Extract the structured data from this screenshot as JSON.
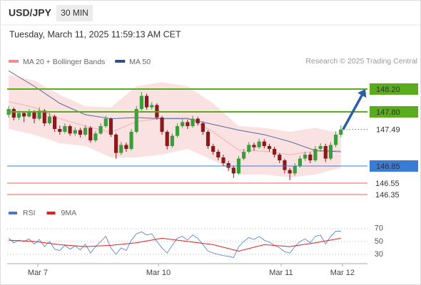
{
  "header": {
    "symbol": "USD/JPY",
    "timeframe": "30 MIN",
    "datetime": "Tuesday, March 11, 2025 11:59:13 AM CET",
    "credit": "Research © 2025 Trading Central"
  },
  "chart_data": [
    {
      "type": "candlestick",
      "legend": [
        {
          "name": "MA 20 + Bollinger Bands",
          "color": "#f08c8c"
        },
        {
          "name": "MA 50",
          "color": "#2f4f86"
        }
      ],
      "up_color": "#3c9d3c",
      "down_color": "#8b1a1a",
      "x": [
        0,
        1,
        2,
        3,
        4,
        5,
        6,
        7,
        8,
        9,
        10,
        11,
        12,
        13,
        14,
        15,
        16,
        17,
        18,
        19,
        20,
        21,
        22,
        23,
        24,
        25,
        26,
        27,
        28,
        29,
        30,
        31,
        32,
        33,
        34,
        35,
        36,
        37,
        38,
        39,
        40,
        41,
        42,
        43,
        44,
        45,
        46,
        47,
        48,
        49,
        50,
        51,
        52,
        53,
        54,
        55,
        56,
        57,
        58,
        59,
        60,
        61,
        62,
        63,
        64,
        65
      ],
      "ohlc": [
        [
          147.75,
          147.9,
          147.7,
          147.85
        ],
        [
          147.85,
          147.88,
          147.65,
          147.7
        ],
        [
          147.7,
          147.82,
          147.66,
          147.78
        ],
        [
          147.78,
          147.8,
          147.62,
          147.72
        ],
        [
          147.72,
          147.85,
          147.7,
          147.8
        ],
        [
          147.8,
          147.83,
          147.6,
          147.68
        ],
        [
          147.68,
          147.88,
          147.65,
          147.82
        ],
        [
          147.82,
          147.85,
          147.55,
          147.6
        ],
        [
          147.6,
          147.78,
          147.57,
          147.72
        ],
        [
          147.72,
          147.75,
          147.45,
          147.5
        ],
        [
          147.5,
          147.56,
          147.4,
          147.45
        ],
        [
          147.45,
          147.6,
          147.42,
          147.55
        ],
        [
          147.55,
          147.58,
          147.38,
          147.42
        ],
        [
          147.42,
          147.53,
          147.38,
          147.48
        ],
        [
          147.48,
          147.52,
          147.35,
          147.4
        ],
        [
          147.4,
          147.57,
          147.37,
          147.52
        ],
        [
          147.52,
          147.55,
          147.26,
          147.3
        ],
        [
          147.3,
          147.46,
          147.27,
          147.42
        ],
        [
          147.42,
          147.6,
          147.4,
          147.55
        ],
        [
          147.55,
          147.73,
          147.52,
          147.68
        ],
        [
          147.68,
          147.7,
          147.36,
          147.4
        ],
        [
          147.4,
          147.43,
          146.98,
          147.08
        ],
        [
          147.08,
          147.27,
          147.04,
          147.22
        ],
        [
          147.22,
          147.26,
          147.1,
          147.15
        ],
        [
          147.15,
          147.5,
          147.12,
          147.45
        ],
        [
          147.45,
          147.9,
          147.42,
          147.85
        ],
        [
          147.85,
          148.15,
          147.82,
          148.08
        ],
        [
          148.08,
          148.12,
          147.84,
          147.88
        ],
        [
          147.88,
          147.97,
          147.84,
          147.92
        ],
        [
          147.92,
          147.95,
          147.66,
          147.7
        ],
        [
          147.7,
          147.73,
          147.4,
          147.45
        ],
        [
          147.45,
          147.48,
          147.14,
          147.2
        ],
        [
          147.2,
          147.42,
          147.17,
          147.38
        ],
        [
          147.38,
          147.6,
          147.35,
          147.55
        ],
        [
          147.55,
          147.68,
          147.52,
          147.62
        ],
        [
          147.62,
          147.66,
          147.5,
          147.55
        ],
        [
          147.55,
          147.73,
          147.52,
          147.68
        ],
        [
          147.68,
          147.71,
          147.56,
          147.6
        ],
        [
          147.6,
          147.63,
          147.4,
          147.45
        ],
        [
          147.45,
          147.48,
          147.15,
          147.2
        ],
        [
          147.2,
          147.24,
          147.05,
          147.1
        ],
        [
          147.1,
          147.14,
          146.95,
          147.0
        ],
        [
          147.0,
          147.05,
          146.85,
          146.9
        ],
        [
          146.9,
          146.94,
          146.76,
          146.82
        ],
        [
          146.82,
          146.86,
          146.64,
          146.72
        ],
        [
          146.72,
          147.03,
          146.7,
          146.98
        ],
        [
          146.98,
          147.15,
          146.95,
          147.1
        ],
        [
          147.1,
          147.27,
          147.07,
          147.22
        ],
        [
          147.22,
          147.26,
          147.12,
          147.18
        ],
        [
          147.18,
          147.33,
          147.15,
          147.28
        ],
        [
          147.28,
          147.32,
          147.16,
          147.2
        ],
        [
          147.2,
          147.24,
          147.1,
          147.15
        ],
        [
          147.15,
          147.19,
          147.0,
          147.05
        ],
        [
          147.05,
          147.08,
          146.9,
          146.95
        ],
        [
          146.95,
          146.98,
          146.72,
          146.78
        ],
        [
          146.78,
          146.82,
          146.6,
          146.72
        ],
        [
          146.72,
          146.9,
          146.68,
          146.85
        ],
        [
          146.85,
          147.03,
          146.82,
          146.98
        ],
        [
          146.98,
          147.1,
          146.94,
          147.05
        ],
        [
          147.05,
          147.09,
          146.9,
          146.95
        ],
        [
          146.95,
          147.2,
          146.92,
          147.15
        ],
        [
          147.15,
          147.25,
          147.1,
          147.2
        ],
        [
          147.2,
          147.24,
          146.92,
          146.98
        ],
        [
          146.98,
          147.27,
          146.95,
          147.22
        ],
        [
          147.22,
          147.46,
          147.18,
          147.4
        ],
        [
          147.4,
          147.56,
          147.36,
          147.49
        ]
      ],
      "bands": {
        "x": [
          0,
          5,
          10,
          15,
          20,
          25,
          30,
          35,
          40,
          45,
          50,
          55,
          60,
          65
        ],
        "upper": [
          148.45,
          148.35,
          148.1,
          147.9,
          147.88,
          148.25,
          148.32,
          148.25,
          147.95,
          147.55,
          147.52,
          147.45,
          147.52,
          147.42
        ],
        "lower": [
          147.5,
          147.4,
          147.25,
          147.2,
          147.0,
          147.0,
          147.05,
          147.15,
          146.95,
          146.7,
          146.7,
          146.65,
          146.7,
          146.82
        ],
        "ma20": [
          147.98,
          147.88,
          147.68,
          147.55,
          147.44,
          147.63,
          147.69,
          147.7,
          147.45,
          147.13,
          147.11,
          147.05,
          147.11,
          147.12
        ],
        "ma50": [
          148.52,
          148.25,
          147.95,
          147.75,
          147.68,
          147.7,
          147.68,
          147.68,
          147.58,
          147.48,
          147.4,
          147.28,
          147.12,
          147.1
        ]
      },
      "levels": [
        {
          "value": 148.2,
          "label": "148.20",
          "color": "#5aab1e",
          "style": "box"
        },
        {
          "value": 147.8,
          "label": "147.80",
          "color": "#5aab1e",
          "style": "box"
        },
        {
          "value": 147.49,
          "label": "147.49",
          "color": "#333333",
          "style": "current"
        },
        {
          "value": 146.85,
          "label": "146.85",
          "color": "#3a7bd5",
          "style": "box"
        },
        {
          "value": 146.55,
          "label": "146.55",
          "color": "#e06060",
          "style": "text"
        },
        {
          "value": 146.35,
          "label": "146.35",
          "color": "#e06060",
          "style": "text"
        }
      ],
      "xlim": [
        -0.3,
        70.2
      ],
      "ylim": [
        146.2,
        148.575
      ]
    },
    {
      "type": "line",
      "x": [
        0,
        1,
        2,
        3,
        4,
        5,
        6,
        7,
        8,
        9,
        10,
        11,
        12,
        13,
        14,
        15,
        16,
        17,
        18,
        19,
        20,
        21,
        22,
        23,
        24,
        25,
        26,
        27,
        28,
        29,
        30,
        31,
        32,
        33,
        34,
        35,
        36,
        37,
        38,
        39,
        40,
        41,
        42,
        43,
        44,
        45,
        46,
        47,
        48,
        49,
        50,
        51,
        52,
        53,
        54,
        55,
        56,
        57,
        58,
        59,
        60,
        61,
        62,
        63,
        64,
        65
      ],
      "series": [
        {
          "name": "RSI",
          "color": "#4a78d0",
          "values": [
            55,
            48,
            52,
            50,
            54,
            46,
            53,
            42,
            50,
            38,
            36,
            44,
            38,
            43,
            37,
            46,
            32,
            42,
            50,
            58,
            40,
            30,
            40,
            36,
            52,
            62,
            65,
            60,
            62,
            50,
            40,
            32,
            44,
            55,
            58,
            52,
            60,
            55,
            45,
            35,
            32,
            30,
            28,
            27,
            25,
            42,
            50,
            56,
            53,
            58,
            52,
            49,
            44,
            40,
            34,
            32,
            42,
            50,
            54,
            48,
            58,
            60,
            46,
            58,
            66,
            66
          ]
        },
        {
          "name": "9MA",
          "color": "#e02020",
          "x": [
            0,
            5,
            10,
            15,
            20,
            25,
            30,
            35,
            40,
            45,
            50,
            55,
            60,
            65
          ],
          "values": [
            52,
            50,
            45,
            42,
            44,
            48,
            55,
            50,
            45,
            35,
            45,
            42,
            48,
            55
          ]
        }
      ],
      "xlim": [
        -0.3,
        70.2
      ],
      "ylim": [
        20,
        82
      ],
      "yticks": [
        70,
        50,
        30
      ],
      "xticks": [
        {
          "value": 5.7,
          "label": "Mar 7"
        },
        {
          "value": 29.3,
          "label": "Mar 10"
        },
        {
          "value": 53.3,
          "label": "Mar 11"
        },
        {
          "value": 65.3,
          "label": "Mar 12"
        }
      ]
    }
  ]
}
